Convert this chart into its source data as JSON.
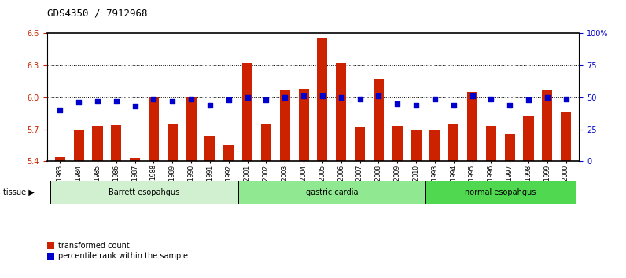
{
  "title": "GDS4350 / 7912968",
  "samples": [
    "GSM851983",
    "GSM851984",
    "GSM851985",
    "GSM851986",
    "GSM851987",
    "GSM851988",
    "GSM851989",
    "GSM851990",
    "GSM851991",
    "GSM851992",
    "GSM852001",
    "GSM852002",
    "GSM852003",
    "GSM852004",
    "GSM852005",
    "GSM852006",
    "GSM852007",
    "GSM852008",
    "GSM852009",
    "GSM852010",
    "GSM851993",
    "GSM851994",
    "GSM851995",
    "GSM851996",
    "GSM851997",
    "GSM851998",
    "GSM851999",
    "GSM852000"
  ],
  "bar_values": [
    5.44,
    5.7,
    5.73,
    5.74,
    5.43,
    6.01,
    5.75,
    6.01,
    5.64,
    5.55,
    6.32,
    5.75,
    6.07,
    6.08,
    6.55,
    6.32,
    5.72,
    6.17,
    5.73,
    5.7,
    5.7,
    5.75,
    6.05,
    5.73,
    5.65,
    5.82,
    6.07,
    5.87
  ],
  "percentile_values": [
    40,
    46,
    47,
    47,
    43,
    49,
    47,
    49,
    44,
    48,
    50,
    48,
    50,
    51,
    51,
    50,
    49,
    51,
    45,
    44,
    49,
    44,
    51,
    49,
    44,
    48,
    50,
    49
  ],
  "groups": [
    {
      "label": "Barrett esopahgus",
      "start": 0,
      "end": 9,
      "color": "#d0f0d0"
    },
    {
      "label": "gastric cardia",
      "start": 10,
      "end": 19,
      "color": "#90e890"
    },
    {
      "label": "normal esopahgus",
      "start": 20,
      "end": 27,
      "color": "#50d850"
    }
  ],
  "ylim_left": [
    5.4,
    6.6
  ],
  "ylim_right": [
    0,
    100
  ],
  "yticks_left": [
    5.4,
    5.7,
    6.0,
    6.3,
    6.6
  ],
  "yticks_right": [
    0,
    25,
    50,
    75,
    100
  ],
  "ytick_labels_right": [
    "0",
    "25",
    "50",
    "75",
    "100%"
  ],
  "bar_color": "#cc2200",
  "dot_color": "#0000cc",
  "plot_bg_color": "#ffffff",
  "fig_bg_color": "#ffffff",
  "grid_color": "#000000",
  "axis_label_color_left": "#cc2200",
  "axis_label_color_right": "#0000cc",
  "title_fontsize": 9,
  "tick_fontsize": 7,
  "xtick_fontsize": 5.5
}
